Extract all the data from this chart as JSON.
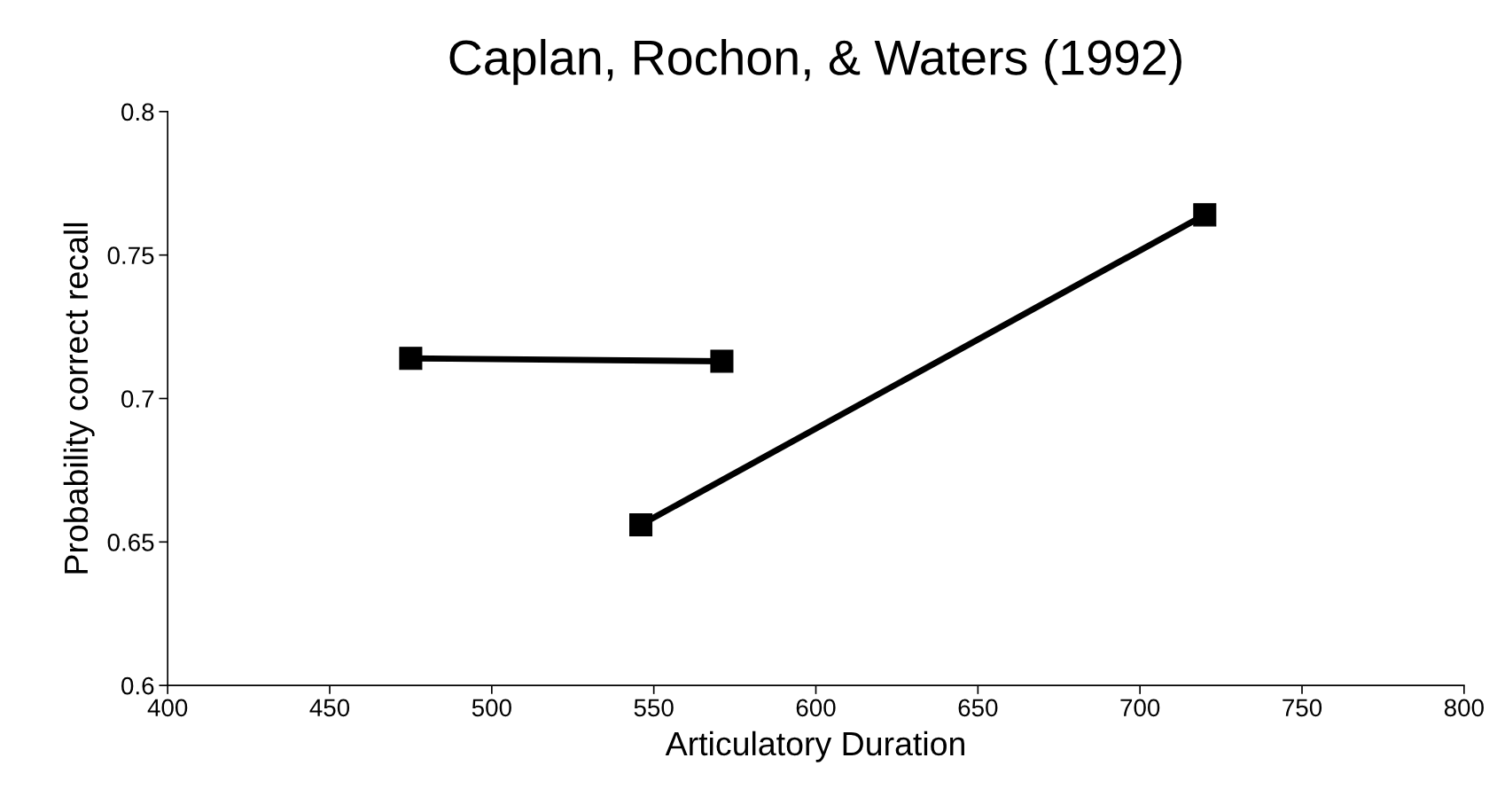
{
  "chart_data": {
    "type": "line",
    "title": "Caplan, Rochon, & Waters (1992)",
    "xlabel": "Articulatory Duration",
    "ylabel": "Probability correct recall",
    "series": [
      {
        "color": "#000000",
        "x": [
          475,
          571
        ],
        "values": [
          0.714,
          0.713
        ]
      },
      {
        "color": "#000000",
        "x": [
          546,
          720
        ],
        "values": [
          0.656,
          0.764
        ]
      }
    ],
    "xlim": [
      400,
      800
    ],
    "xticks": [
      400,
      450,
      500,
      550,
      600,
      650,
      700,
      750,
      800
    ],
    "ylim": [
      0.6,
      0.8
    ],
    "yticks": [
      0.6,
      0.65,
      0.7,
      0.75,
      0.8
    ],
    "grid": false,
    "marker": "square",
    "line_style": "solid"
  }
}
